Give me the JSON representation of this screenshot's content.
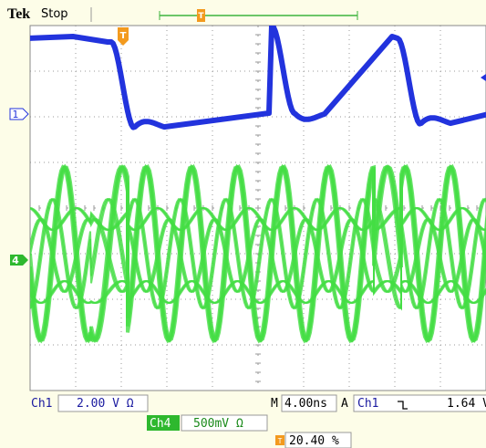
{
  "header": {
    "brand": "Tek",
    "status": "Stop"
  },
  "markers": {
    "channel1": "1",
    "channel4": "4",
    "trigger": "T"
  },
  "readouts": {
    "ch1_label": "Ch1",
    "ch1_scale": "2.00 V Ω",
    "timebase_label": "M",
    "timebase": "4.00ns",
    "trigger_label": "A",
    "trigger_source": "Ch1",
    "trigger_level": "1.64 V",
    "ch4_label": "Ch4",
    "ch4_scale": "500mV Ω",
    "trigger_position": "20.40 %"
  }
}
